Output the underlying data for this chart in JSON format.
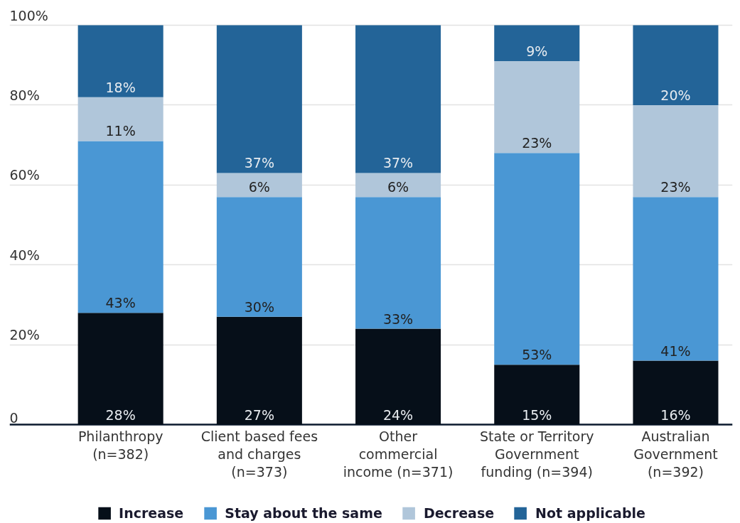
{
  "chart_data": {
    "type": "bar",
    "stacked": true,
    "categories": [
      "Philanthropy\n(n=382)",
      "Client based fees\nand charges\n(n=373)",
      "Other\ncommercial\nincome (n=371)",
      "State or Territory\nGovernment\nfunding (n=394)",
      "Australian\nGovernment\n(n=392)"
    ],
    "series": [
      {
        "name": "Increase",
        "color": "#060f19",
        "values": [
          28,
          27,
          24,
          15,
          16
        ],
        "value_labels": [
          "28%",
          "27%",
          "24%",
          "15%",
          "16%"
        ]
      },
      {
        "name": "Stay about the same",
        "color": "#4a97d4",
        "values": [
          43,
          30,
          33,
          53,
          41
        ],
        "value_labels": [
          "43%",
          "30%",
          "33%",
          "53%",
          "41%"
        ]
      },
      {
        "name": "Decrease",
        "color": "#b0c6da",
        "values": [
          11,
          6,
          6,
          23,
          23
        ],
        "value_labels": [
          "11%",
          "6%",
          "6%",
          "23%",
          "23%"
        ]
      },
      {
        "name": "Not applicable",
        "color": "#236498",
        "values": [
          18,
          37,
          37,
          9,
          20
        ],
        "value_labels": [
          "18%",
          "37%",
          "37%",
          "9%",
          "20%"
        ]
      }
    ],
    "ylim": [
      0,
      100
    ],
    "yticks": [
      {
        "value": 0,
        "label": "0"
      },
      {
        "value": 20,
        "label": "20%"
      },
      {
        "value": 40,
        "label": "40%"
      },
      {
        "value": 60,
        "label": "60%"
      },
      {
        "value": 80,
        "label": "80%"
      },
      {
        "value": 100,
        "label": "100%"
      }
    ],
    "grid": "y",
    "legend": "bottom"
  }
}
